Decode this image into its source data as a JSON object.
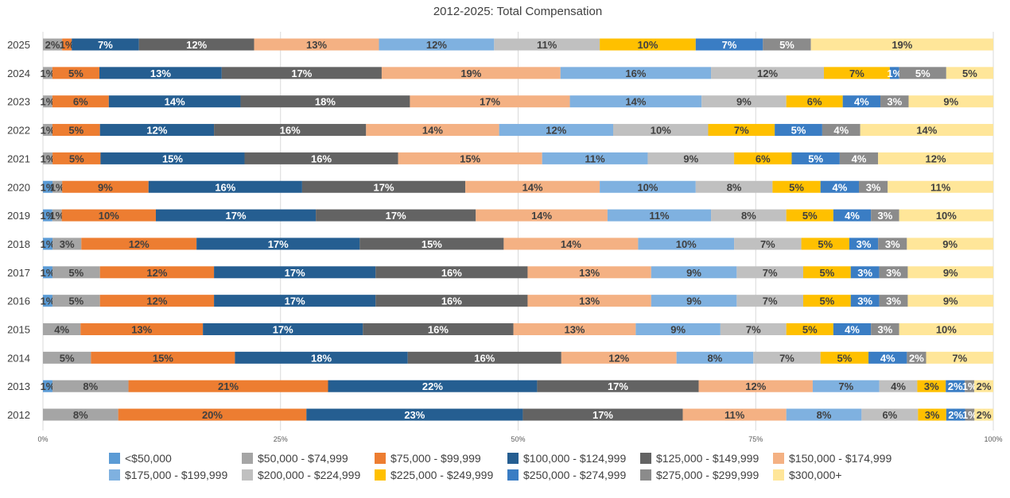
{
  "chart_data": {
    "type": "bar",
    "orientation": "horizontal",
    "stacked": "percent",
    "title": "2012-2025: Total Compensation",
    "xlabel": "",
    "ylabel": "",
    "xlim": [
      0,
      100
    ],
    "x_ticks": [
      "0%",
      "25%",
      "50%",
      "75%",
      "100%"
    ],
    "grid": true,
    "legend_position": "bottom",
    "categories": [
      "2025",
      "2024",
      "2023",
      "2022",
      "2021",
      "2020",
      "2019",
      "2018",
      "2017",
      "2016",
      "2015",
      "2014",
      "2013",
      "2012"
    ],
    "series": [
      {
        "name": "<$50,000",
        "color": "#5b9bd5",
        "text_color": "#404040",
        "label_style": "normal",
        "values": [
          0,
          0,
          0,
          0,
          0,
          1,
          1,
          1,
          1,
          1,
          0,
          0,
          1,
          0
        ],
        "labels": [
          "",
          "",
          "",
          "",
          "",
          "1%",
          "1%",
          "1%",
          "1%",
          "1%",
          "",
          "",
          "1%",
          ""
        ]
      },
      {
        "name": "$50,000 - $74,999",
        "color": "#a5a5a5",
        "text_color": "#404040",
        "label_style": "normal",
        "values": [
          2,
          1,
          1,
          1,
          1,
          1,
          1,
          3,
          5,
          5,
          4,
          5,
          8,
          8
        ],
        "labels": [
          "2%",
          "1%",
          "1%",
          "1%",
          "1%",
          "1%",
          "1%",
          "3%",
          "5%",
          "5%",
          "4%",
          "5%",
          "8%",
          "8%"
        ]
      },
      {
        "name": "$75,000 - $99,999",
        "color": "#ed7d31",
        "text_color": "#404040",
        "label_style": "normal",
        "values": [
          1,
          5,
          6,
          5,
          5,
          9,
          10,
          12,
          12,
          12,
          13,
          15,
          21,
          20
        ],
        "labels": [
          "1%",
          "5%",
          "6%",
          "5%",
          "5%",
          "9%",
          "10%",
          "12%",
          "12%",
          "12%",
          "13%",
          "15%",
          "21%",
          "20%"
        ]
      },
      {
        "name": "$100,000 - $124,999",
        "color": "#255e91",
        "text_color": "#ffffff",
        "label_style": "bold",
        "values": [
          7,
          13,
          14,
          12,
          15,
          16,
          17,
          17,
          17,
          17,
          17,
          18,
          22,
          23
        ],
        "labels": [
          "7%",
          "13%",
          "14%",
          "12%",
          "15%",
          "16%",
          "17%",
          "17%",
          "17%",
          "17%",
          "17%",
          "18%",
          "22%",
          "23%"
        ]
      },
      {
        "name": "$125,000 - $149,999",
        "color": "#636363",
        "text_color": "#ffffff",
        "label_style": "bold",
        "values": [
          12,
          17,
          18,
          16,
          16,
          17,
          17,
          15,
          16,
          16,
          16,
          16,
          17,
          17
        ],
        "labels": [
          "12%",
          "17%",
          "18%",
          "16%",
          "16%",
          "17%",
          "17%",
          "15%",
          "16%",
          "16%",
          "16%",
          "16%",
          "17%",
          "17%"
        ]
      },
      {
        "name": "$150,000 - $174,999",
        "color": "#f4b183",
        "text_color": "#404040",
        "label_style": "normal",
        "values": [
          13,
          19,
          17,
          14,
          15,
          14,
          14,
          14,
          13,
          13,
          13,
          12,
          12,
          11
        ],
        "labels": [
          "13%",
          "19%",
          "17%",
          "14%",
          "15%",
          "14%",
          "14%",
          "14%",
          "13%",
          "13%",
          "13%",
          "12%",
          "12%",
          "11%"
        ]
      },
      {
        "name": "$175,000 - $199,999",
        "color": "#7fb1e0",
        "text_color": "#404040",
        "label_style": "normal",
        "values": [
          12,
          16,
          14,
          12,
          11,
          10,
          11,
          10,
          9,
          9,
          9,
          8,
          7,
          8
        ],
        "labels": [
          "12%",
          "16%",
          "14%",
          "12%",
          "11%",
          "10%",
          "11%",
          "10%",
          "9%",
          "9%",
          "9%",
          "8%",
          "7%",
          "8%"
        ]
      },
      {
        "name": "$200,000 - $224,999",
        "color": "#c0c0c0",
        "text_color": "#404040",
        "label_style": "normal",
        "values": [
          11,
          12,
          9,
          10,
          9,
          8,
          8,
          7,
          7,
          7,
          7,
          7,
          4,
          6
        ],
        "labels": [
          "11%",
          "12%",
          "9%",
          "10%",
          "9%",
          "8%",
          "8%",
          "7%",
          "7%",
          "7%",
          "7%",
          "7%",
          "4%",
          "6%"
        ]
      },
      {
        "name": "$225,000 - $249,999",
        "color": "#ffc000",
        "text_color": "#404040",
        "label_style": "normal",
        "values": [
          10,
          7,
          6,
          7,
          6,
          5,
          5,
          5,
          5,
          5,
          5,
          5,
          3,
          3
        ],
        "labels": [
          "10%",
          "7%",
          "6%",
          "7%",
          "6%",
          "5%",
          "5%",
          "5%",
          "5%",
          "5%",
          "5%",
          "5%",
          "3%",
          "3%"
        ]
      },
      {
        "name": "$250,000 - $274,999",
        "color": "#3a7dc4",
        "text_color": "#ffffff",
        "label_style": "bold",
        "values": [
          7,
          1,
          4,
          5,
          5,
          4,
          4,
          3,
          3,
          3,
          4,
          4,
          2,
          2
        ],
        "labels": [
          "7%",
          "1%",
          "4%",
          "5%",
          "5%",
          "4%",
          "4%",
          "3%",
          "3%",
          "3%",
          "4%",
          "4%",
          "2%",
          "2%"
        ]
      },
      {
        "name": "$275,000 - $299,999",
        "color": "#8b8b8b",
        "text_color": "#ffffff",
        "label_style": "bold",
        "values": [
          5,
          5,
          3,
          4,
          4,
          3,
          3,
          3,
          3,
          3,
          3,
          2,
          1,
          1
        ],
        "labels": [
          "5%",
          "5%",
          "3%",
          "4%",
          "4%",
          "3%",
          "3%",
          "3%",
          "3%",
          "3%",
          "3%",
          "2%",
          "1%",
          "1%"
        ]
      },
      {
        "name": "$300,000+",
        "color": "#ffe699",
        "text_color": "#404040",
        "label_style": "normal",
        "values": [
          19,
          5,
          9,
          14,
          12,
          11,
          10,
          9,
          9,
          9,
          10,
          7,
          2,
          2
        ],
        "labels": [
          "19%",
          "5%",
          "9%",
          "14%",
          "12%",
          "11%",
          "10%",
          "9%",
          "9%",
          "9%",
          "10%",
          "7%",
          "2%",
          "2%"
        ]
      }
    ]
  }
}
